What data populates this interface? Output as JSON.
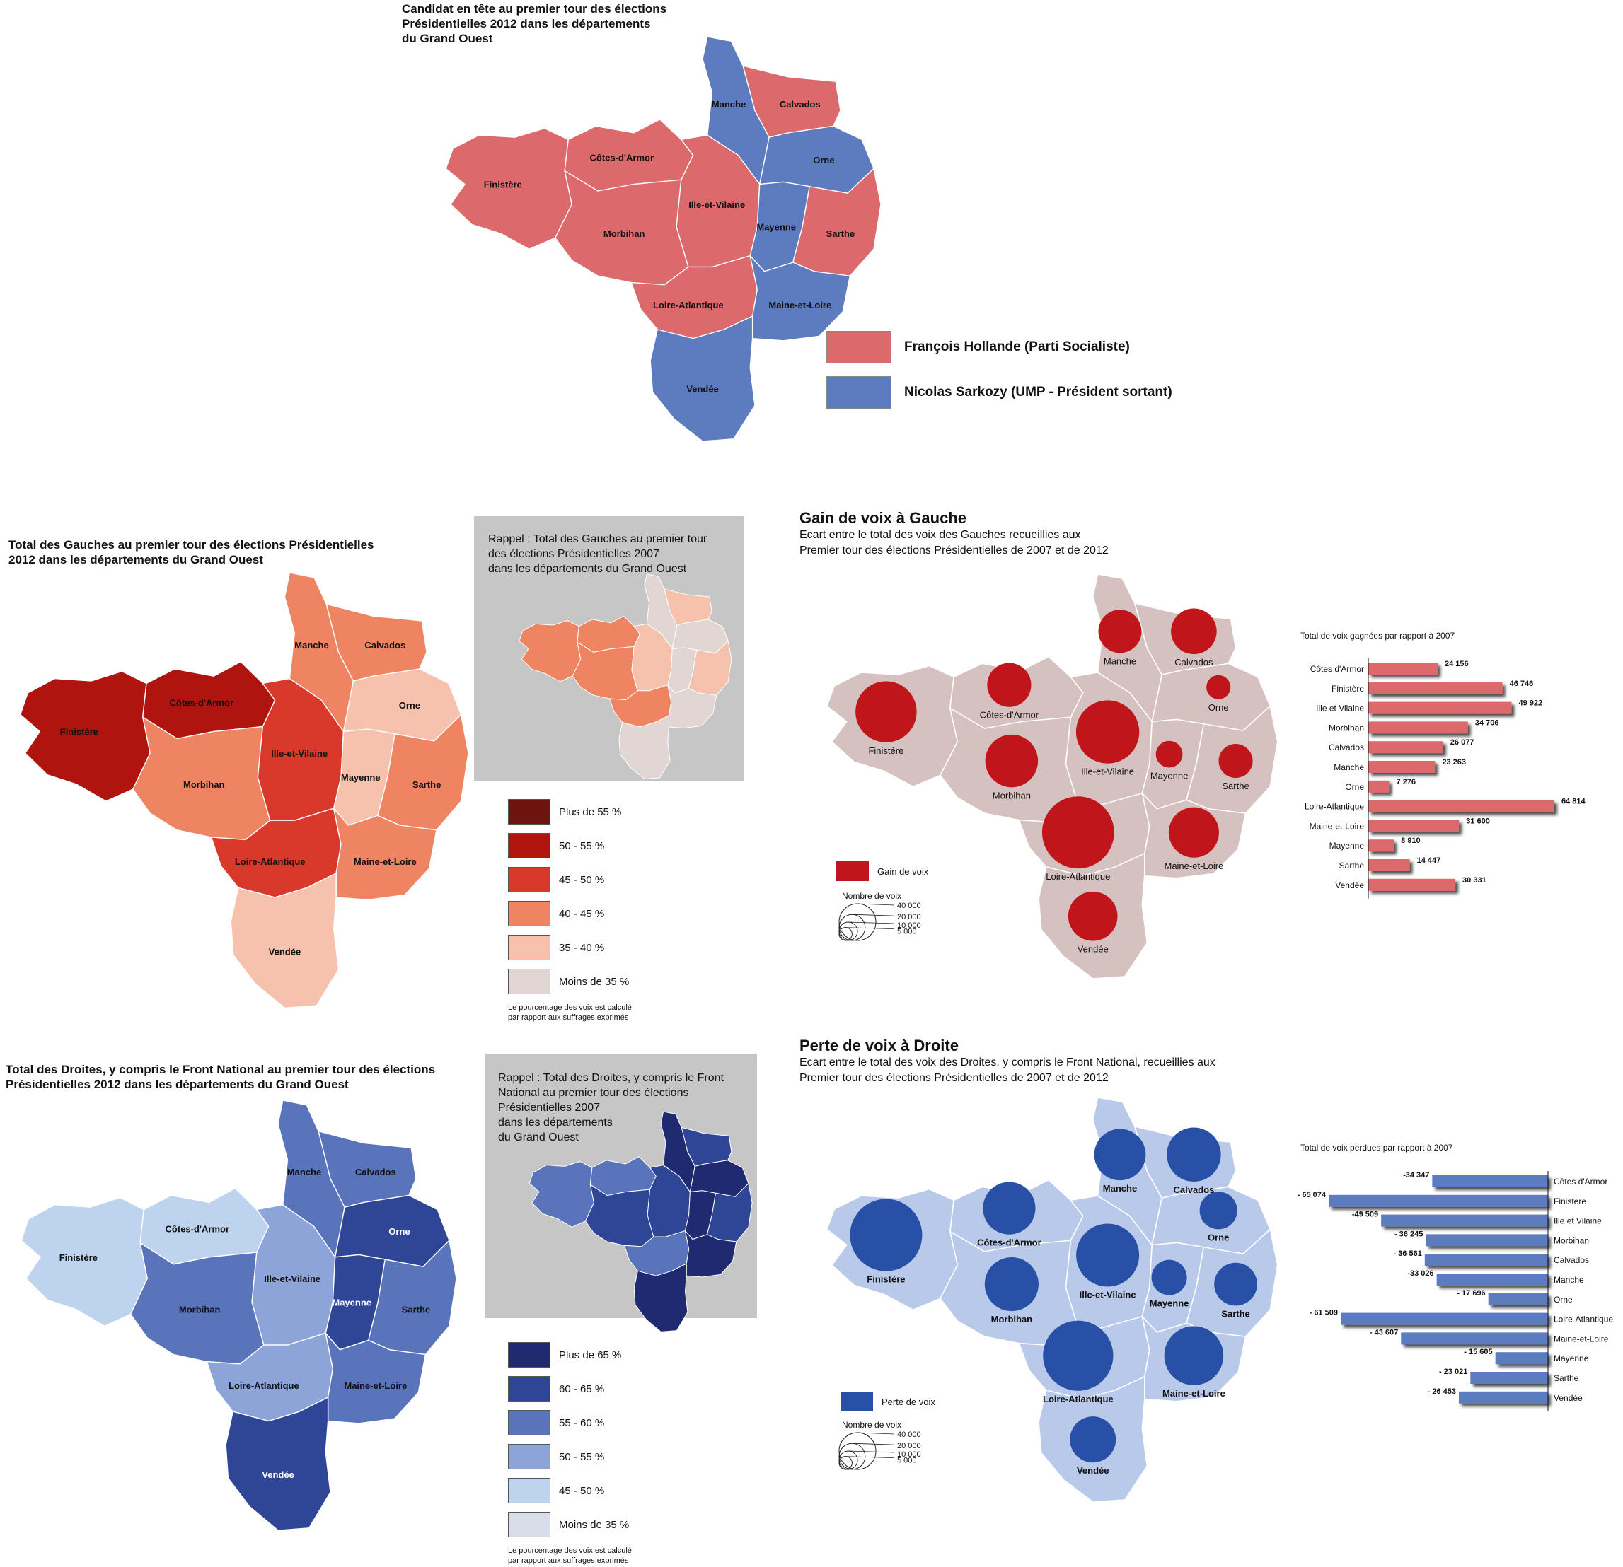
{
  "map1": {
    "title": "Candidat en tête au premier tour des élections\nPrésidentielles 2012 dans les départements\ndu Grand Ouest",
    "legend": [
      {
        "label": "François Hollande (Parti Socialiste)",
        "color": "#dc6a6c"
      },
      {
        "label": "Nicolas Sarkozy (UMP - Président sortant)",
        "color": "#5d7cc0"
      }
    ],
    "departments": {
      "finistere": "Finistère",
      "cotes": "Côtes-d'Armor",
      "morbihan": "Morbihan",
      "ille": "Ille-et-Vilaine",
      "loire": "Loire-Atlantique",
      "manche": "Manche",
      "calvados": "Calvados",
      "orne": "Orne",
      "mayenne": "Mayenne",
      "sarthe": "Sarthe",
      "maine": "Maine-et-Loire",
      "vendee": "Vendée"
    },
    "winner": {
      "finistere": "ps",
      "cotes": "ps",
      "morbihan": "ps",
      "ille": "ps",
      "loire": "ps",
      "calvados": "ps",
      "sarthe": "ps",
      "manche": "ump",
      "orne": "ump",
      "mayenne": "ump",
      "maine": "ump",
      "vendee": "ump"
    }
  },
  "gauche": {
    "title": "Total des Gauches au premier tour des élections Présidentielles\n2012 dans les départements du Grand Ouest",
    "rappel": "Rappel : Total des Gauches au premier tour\ndes élections Présidentielles 2007\ndans les départements du Grand Ouest",
    "legend": [
      {
        "label": "Plus de 55 %",
        "color": "#6e1410"
      },
      {
        "label": "50 - 55 %",
        "color": "#b0140f"
      },
      {
        "label": "45 - 50 %",
        "color": "#d8392b"
      },
      {
        "label": "40 - 45 %",
        "color": "#ef8462"
      },
      {
        "label": "35 - 40 %",
        "color": "#f6c1ad"
      },
      {
        "label": "Moins de 35 %",
        "color": "#e2d6d4"
      }
    ],
    "note": "Le pourcentage des voix est calculé\npar rapport aux suffrages exprimés",
    "departments": {
      "finistere": "Finistère",
      "cotes": "Côtes-d'Armor",
      "morbihan": "Morbihan",
      "ille": "Ille-et-Vilaine",
      "loire": "Loire-Atlantique",
      "manche": "Manche",
      "calvados": "Calvados",
      "orne": "Orne",
      "mayenne": "Mayenne",
      "sarthe": "Sarthe",
      "maine": "Maine-et-Loire",
      "vendee": "Vendée"
    },
    "class2012": {
      "finistere": 1,
      "cotes": 1,
      "morbihan": 3,
      "ille": 2,
      "loire": 2,
      "manche": 3,
      "calvados": 3,
      "orne": 4,
      "mayenne": 4,
      "sarthe": 3,
      "maine": 3,
      "vendee": 4
    },
    "class2007": {
      "finistere": 3,
      "cotes": 3,
      "morbihan": 3,
      "ille": 4,
      "loire": 3,
      "manche": 5,
      "calvados": 4,
      "orne": 5,
      "mayenne": 5,
      "sarthe": 4,
      "maine": 5,
      "vendee": 5
    }
  },
  "droite": {
    "title": "Total des Droites, y compris le Front National au premier tour des élections\nPrésidentielles 2012 dans les départements du Grand Ouest",
    "rappel": "Rappel : Total des Droites, y compris le Front\nNational au premier tour des élections\nPrésidentielles 2007\ndans les départements\ndu Grand Ouest",
    "legend": [
      {
        "label": "Plus de 65 %",
        "color": "#202a70"
      },
      {
        "label": "60 - 65 %",
        "color": "#2f4596"
      },
      {
        "label": "55 - 60 %",
        "color": "#5a74bb"
      },
      {
        "label": "50 - 55 %",
        "color": "#8da4d8"
      },
      {
        "label": "45 - 50 %",
        "color": "#bdd3ee"
      },
      {
        "label": "Moins de 35 %",
        "color": "#d8dde9"
      }
    ],
    "note": "Le pourcentage des voix est calculé\npar rapport aux suffrages exprimés",
    "departments": {
      "finistere": "Finistère",
      "cotes": "Côtes-d'Armor",
      "morbihan": "Morbihan",
      "ille": "Ille-et-Vilaine",
      "loire": "Loire-Atlantique",
      "manche": "Manche",
      "calvados": "Calvados",
      "orne": "Orne",
      "mayenne": "Mayenne",
      "sarthe": "Sarthe",
      "maine": "Maine-et-Loire",
      "vendee": "Vendée"
    },
    "class2012": {
      "finistere": 4,
      "cotes": 4,
      "morbihan": 2,
      "ille": 3,
      "loire": 3,
      "manche": 2,
      "calvados": 2,
      "orne": 1,
      "mayenne": 1,
      "sarthe": 2,
      "maine": 2,
      "vendee": 1
    },
    "class2007": {
      "finistere": 2,
      "cotes": 2,
      "morbihan": 1,
      "ille": 1,
      "loire": 2,
      "manche": 0,
      "calvados": 1,
      "orne": 0,
      "mayenne": 0,
      "sarthe": 1,
      "maine": 0,
      "vendee": 0
    }
  },
  "gain": {
    "title": "Gain de voix à Gauche",
    "subtitle": "Ecart entre le total des voix des Gauches recueillies aux\nPremier tour des élections Présidentielles de 2007 et de 2012",
    "bubble_label": "Gain de voix",
    "bubble_color": "#c0151a",
    "nombre_label": "Nombre de voix",
    "scale": [
      "40 000",
      "20 000",
      "10 000",
      "5 000"
    ],
    "departments": {
      "finistere": "Finistère",
      "cotes": "Côtes-d'Armor",
      "morbihan": "Morbihan",
      "ille": "Ille-et-Vilaine",
      "loire": "Loire-Atlantique",
      "manche": "Manche",
      "calvados": "Calvados",
      "orne": "Orne",
      "mayenne": "Mayenne",
      "sarthe": "Sarthe",
      "maine": "Maine-et-Loire",
      "vendee": "Vendée"
    }
  },
  "perte": {
    "title": "Perte de voix à Droite",
    "subtitle": "Ecart entre le total des voix des Droites, y compris le Front National, recueillies aux\nPremier tour des élections Présidentielles de 2007 et de 2012",
    "bubble_label": "Perte de voix",
    "bubble_color": "#2850a6",
    "nombre_label": "Nombre de voix",
    "scale": [
      "40 000",
      "20 000",
      "10 000",
      "5 000"
    ],
    "departments": {
      "finistere": "Finistère",
      "cotes": "Côtes-d'Armor",
      "morbihan": "Morbihan",
      "ille": "Ille-et-Vilaine",
      "loire": "Loire-Atlantique",
      "manche": "Manche",
      "calvados": "Calvados",
      "orne": "Orne",
      "mayenne": "Mayenne",
      "sarthe": "Sarthe",
      "maine": "Maine-et-Loire",
      "vendee": "Vendée"
    }
  },
  "chart_data": [
    {
      "type": "bar",
      "title": "Total de voix gagnées par rapport à 2007",
      "categories": [
        "Côtes d'Armor",
        "Finistère",
        "Ille et Vilaine",
        "Morbihan",
        "Calvados",
        "Manche",
        "Orne",
        "Loire-Atlantique",
        "Maine-et-Loire",
        "Mayenne",
        "Sarthe",
        "Vendée"
      ],
      "values": [
        24156,
        46746,
        49922,
        34706,
        26077,
        23263,
        7276,
        64814,
        31600,
        8910,
        14447,
        30331
      ],
      "value_labels": [
        "24 156",
        "46 746",
        "49 922",
        "34 706",
        "26 077",
        "23 263",
        "7 276",
        "64 814",
        "31 600",
        "8 910",
        "14 447",
        "30 331"
      ],
      "color": "#dc6a6c"
    },
    {
      "type": "bar",
      "title": "Total de voix perdues par rapport à 2007",
      "categories": [
        "Côtes d'Armor",
        "Finistère",
        "Ille et Vilaine",
        "Morbihan",
        "Calvados",
        "Manche",
        "Orne",
        "Loire-Atlantique",
        "Maine-et-Loire",
        "Mayenne",
        "Sarthe",
        "Vendée"
      ],
      "values": [
        -34347,
        -65074,
        -49509,
        -36245,
        -36561,
        -33026,
        -17696,
        -61509,
        -43607,
        -15605,
        -23021,
        -26453
      ],
      "value_labels": [
        "-34 347",
        "- 65 074",
        "-49 509",
        "- 36 245",
        "- 36 561",
        "-33 026",
        "- 17 696",
        "- 61 509",
        "- 43 607",
        "- 15 605",
        "- 23 021",
        "- 26 453"
      ],
      "color": "#5d7cc0"
    }
  ]
}
